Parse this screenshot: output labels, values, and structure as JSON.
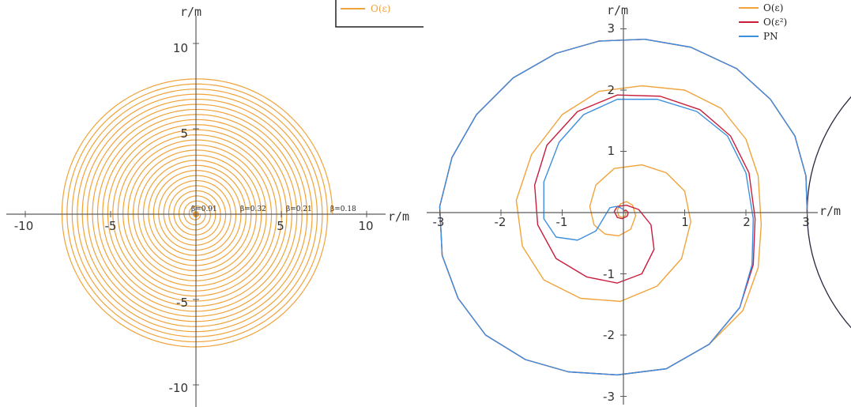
{
  "colors": {
    "orange": "#f0a33a",
    "red": "#c81e3c",
    "blue": "#3d8fe0",
    "circle": "#2a2740",
    "axis": "#5a5a5a"
  },
  "chart_data": [
    {
      "type": "line",
      "title": "",
      "xlabel": "r/m",
      "ylabel": "r/m",
      "xlim": [
        -11,
        11
      ],
      "ylim": [
        -11,
        11
      ],
      "xticks": [
        -10,
        -5,
        5,
        10
      ],
      "yticks": [
        10,
        5,
        -5,
        -10
      ],
      "tick_labels_x": [
        "-10",
        "-5",
        "5",
        "10"
      ],
      "tick_labels_y": [
        "10",
        "5",
        "-5",
        "-10"
      ],
      "series": [
        {
          "name": "O(ε)",
          "color": "#f0a33a",
          "kind": "spiral",
          "r_start": 8.0,
          "r_end": 0.25,
          "turns": 26
        }
      ],
      "annotations": [
        {
          "text": "β=0.91",
          "x": 0,
          "y": 0.2
        },
        {
          "text": "β=0.32",
          "x": 3.4,
          "y": 0.2
        },
        {
          "text": "β=0.21",
          "x": 6.0,
          "y": 0.2
        },
        {
          "text": "β=0.18",
          "x": 8.6,
          "y": 0.2
        }
      ],
      "legend": {
        "position": "top-right",
        "entries": [
          "O(ε)"
        ]
      },
      "grid": false
    },
    {
      "type": "line",
      "title": "",
      "xlabel": "r/m",
      "ylabel": "r/m",
      "xlim": [
        -3,
        3
      ],
      "ylim": [
        -3,
        3
      ],
      "xticks": [
        -3,
        -2,
        -1,
        1,
        2,
        3
      ],
      "yticks": [
        3,
        2,
        1,
        -1,
        -2,
        -3
      ],
      "tick_labels_x": [
        "-3",
        "-2",
        "-1",
        "1",
        "2",
        "3"
      ],
      "tick_labels_y": [
        "3",
        "2",
        "1",
        "-1",
        "-2",
        "-3"
      ],
      "series": [
        {
          "name": "O(ε)",
          "color": "#f0a33a",
          "points": [
            [
              3.0,
              0
            ],
            [
              2.98,
              0.6
            ],
            [
              2.8,
              1.25
            ],
            [
              2.4,
              1.85
            ],
            [
              1.85,
              2.35
            ],
            [
              1.1,
              2.7
            ],
            [
              0.35,
              2.83
            ],
            [
              -0.4,
              2.8
            ],
            [
              -1.1,
              2.6
            ],
            [
              -1.8,
              2.2
            ],
            [
              -2.4,
              1.6
            ],
            [
              -2.8,
              0.9
            ],
            [
              -3.0,
              0.1
            ],
            [
              -2.96,
              -0.7
            ],
            [
              -2.7,
              -1.4
            ],
            [
              -2.25,
              -2.0
            ],
            [
              -1.6,
              -2.4
            ],
            [
              -0.9,
              -2.6
            ],
            [
              -0.1,
              -2.65
            ],
            [
              0.7,
              -2.55
            ],
            [
              1.4,
              -2.15
            ],
            [
              1.95,
              -1.6
            ],
            [
              2.2,
              -0.9
            ],
            [
              2.25,
              -0.2
            ],
            [
              2.2,
              0.6
            ],
            [
              2.0,
              1.2
            ],
            [
              1.6,
              1.7
            ],
            [
              1.0,
              2.0
            ],
            [
              0.3,
              2.07
            ],
            [
              -0.4,
              1.98
            ],
            [
              -1.0,
              1.6
            ],
            [
              -1.5,
              0.95
            ],
            [
              -1.75,
              0.2
            ],
            [
              -1.65,
              -0.55
            ],
            [
              -1.3,
              -1.1
            ],
            [
              -0.7,
              -1.4
            ],
            [
              -0.05,
              -1.45
            ],
            [
              0.55,
              -1.2
            ],
            [
              0.95,
              -0.75
            ],
            [
              1.1,
              -0.15
            ],
            [
              1.0,
              0.35
            ],
            [
              0.7,
              0.65
            ],
            [
              0.3,
              0.78
            ],
            [
              -0.15,
              0.72
            ],
            [
              -0.45,
              0.45
            ],
            [
              -0.55,
              0.1
            ],
            [
              -0.48,
              -0.2
            ],
            [
              -0.3,
              -0.35
            ],
            [
              -0.08,
              -0.38
            ],
            [
              0.12,
              -0.27
            ],
            [
              0.2,
              -0.05
            ],
            [
              0.15,
              0.12
            ],
            [
              0.05,
              0.18
            ],
            [
              -0.05,
              0.14
            ],
            [
              -0.1,
              0.04
            ],
            [
              -0.08,
              -0.05
            ],
            [
              -0.02,
              -0.08
            ],
            [
              0.03,
              -0.05
            ],
            [
              0.04,
              0.0
            ],
            [
              0.02,
              0.03
            ],
            [
              0.0,
              0.02
            ]
          ]
        },
        {
          "name": "O(ε²)",
          "color": "#c81e3c",
          "points": [
            [
              3.0,
              0
            ],
            [
              2.98,
              0.6
            ],
            [
              2.8,
              1.25
            ],
            [
              2.4,
              1.85
            ],
            [
              1.85,
              2.35
            ],
            [
              1.1,
              2.7
            ],
            [
              0.35,
              2.83
            ],
            [
              -0.4,
              2.8
            ],
            [
              -1.1,
              2.6
            ],
            [
              -1.8,
              2.2
            ],
            [
              -2.4,
              1.6
            ],
            [
              -2.8,
              0.9
            ],
            [
              -3.0,
              0.1
            ],
            [
              -2.96,
              -0.7
            ],
            [
              -2.7,
              -1.4
            ],
            [
              -2.25,
              -2.0
            ],
            [
              -1.6,
              -2.4
            ],
            [
              -0.9,
              -2.6
            ],
            [
              -0.1,
              -2.65
            ],
            [
              0.7,
              -2.55
            ],
            [
              1.4,
              -2.15
            ],
            [
              1.9,
              -1.55
            ],
            [
              2.12,
              -0.85
            ],
            [
              2.15,
              -0.1
            ],
            [
              2.05,
              0.65
            ],
            [
              1.75,
              1.25
            ],
            [
              1.25,
              1.68
            ],
            [
              0.6,
              1.9
            ],
            [
              -0.1,
              1.92
            ],
            [
              -0.75,
              1.65
            ],
            [
              -1.25,
              1.1
            ],
            [
              -1.45,
              0.45
            ],
            [
              -1.4,
              -0.2
            ],
            [
              -1.1,
              -0.75
            ],
            [
              -0.6,
              -1.05
            ],
            [
              -0.1,
              -1.15
            ],
            [
              0.3,
              -1.0
            ],
            [
              0.5,
              -0.6
            ],
            [
              0.45,
              -0.2
            ],
            [
              0.25,
              0.05
            ],
            [
              0.05,
              0.12
            ],
            [
              -0.1,
              0.1
            ],
            [
              -0.15,
              0.02
            ],
            [
              -0.1,
              -0.08
            ],
            [
              -0.02,
              -0.1
            ],
            [
              0.06,
              -0.06
            ],
            [
              0.08,
              0.0
            ],
            [
              0.04,
              0.04
            ],
            [
              0.0,
              0.03
            ]
          ]
        },
        {
          "name": "PN",
          "color": "#3d8fe0",
          "points": [
            [
              3.0,
              0
            ],
            [
              2.98,
              0.6
            ],
            [
              2.8,
              1.25
            ],
            [
              2.4,
              1.85
            ],
            [
              1.85,
              2.35
            ],
            [
              1.1,
              2.7
            ],
            [
              0.35,
              2.83
            ],
            [
              -0.4,
              2.8
            ],
            [
              -1.1,
              2.6
            ],
            [
              -1.8,
              2.2
            ],
            [
              -2.4,
              1.6
            ],
            [
              -2.8,
              0.9
            ],
            [
              -3.0,
              0.1
            ],
            [
              -2.96,
              -0.7
            ],
            [
              -2.7,
              -1.4
            ],
            [
              -2.25,
              -2.0
            ],
            [
              -1.6,
              -2.4
            ],
            [
              -0.9,
              -2.6
            ],
            [
              -0.1,
              -2.65
            ],
            [
              0.7,
              -2.55
            ],
            [
              1.4,
              -2.15
            ],
            [
              1.9,
              -1.55
            ],
            [
              2.1,
              -0.85
            ],
            [
              2.12,
              -0.1
            ],
            [
              2.0,
              0.65
            ],
            [
              1.7,
              1.25
            ],
            [
              1.2,
              1.65
            ],
            [
              0.55,
              1.85
            ],
            [
              -0.1,
              1.85
            ],
            [
              -0.65,
              1.6
            ],
            [
              -1.05,
              1.15
            ],
            [
              -1.3,
              0.5
            ],
            [
              -1.3,
              -0.1
            ],
            [
              -1.1,
              -0.4
            ],
            [
              -0.75,
              -0.45
            ],
            [
              -0.45,
              -0.3
            ],
            [
              -0.3,
              -0.05
            ],
            [
              -0.22,
              0.08
            ],
            [
              -0.12,
              0.1
            ],
            [
              -0.05,
              0.08
            ],
            [
              0.0,
              0.05
            ]
          ]
        }
      ],
      "legend": {
        "position": "top-right",
        "entries": [
          "O(ε)",
          "O(ε²)",
          "PN"
        ]
      },
      "grid": false
    }
  ],
  "legend_left": {
    "items": [
      "O(ε)"
    ]
  },
  "legend_right": {
    "items": [
      "O(ε)",
      "O(ε²)",
      "PN"
    ]
  },
  "axes_left": {
    "x_label": "r/m",
    "y_label": "r/m",
    "x_ticks": [
      "-10",
      "-5",
      "5",
      "10"
    ],
    "y_ticks": [
      "10",
      "5",
      "-5",
      "-10"
    ]
  },
  "axes_right": {
    "x_label": "r/m",
    "y_label": "r/m",
    "x_ticks": [
      "-3",
      "-2",
      "-1",
      "1",
      "2",
      "3"
    ],
    "y_ticks": [
      "3",
      "2",
      "1",
      "-1",
      "-2",
      "-3"
    ]
  },
  "annotations_left": [
    "β=0.91",
    "β=0.32",
    "β=0.21",
    "β=0.18"
  ]
}
